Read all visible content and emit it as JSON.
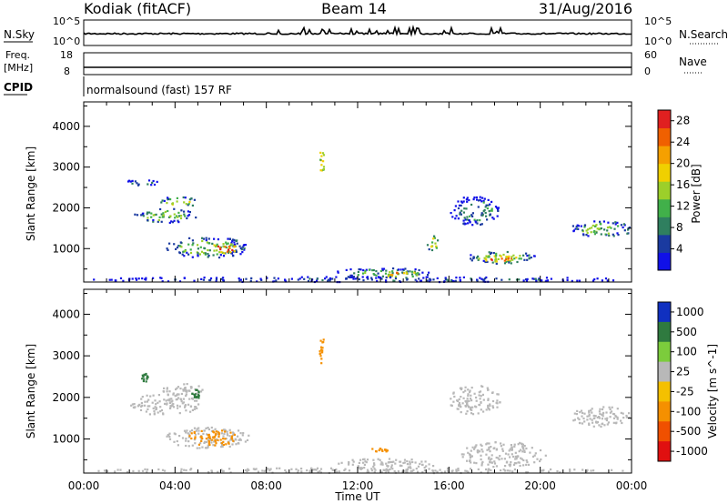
{
  "header": {
    "title": "Kodiak (fitACF)",
    "beam": "Beam 14",
    "date": "31/Aug/2016"
  },
  "top_panels": {
    "nsky_label": "N.Sky",
    "nsky_ticks": [
      "10^5",
      "10^0"
    ],
    "nsearch_label": "N.Search",
    "nsearch_ticks": [
      "10^5",
      "10^0"
    ],
    "freq_label_1": "Freq.",
    "freq_label_2": "[MHz]",
    "freq_ticks": [
      "18",
      "8"
    ],
    "nave_label": "Nave",
    "nave_ticks": [
      "60",
      "0"
    ],
    "cpid_label": "CPID",
    "cpid_text": "normalsound (fast) 157 RF"
  },
  "chart_data": [
    {
      "type": "heatmap",
      "name": "power-panel",
      "ylabel": "Slant Range [km]",
      "xlabel": "Time UT",
      "x_ticks": [
        "00:00",
        "04:00",
        "08:00",
        "12:00",
        "16:00",
        "20:00",
        "00:00"
      ],
      "x_range_hours": [
        0,
        24
      ],
      "y_ticks": [
        1000,
        2000,
        3000,
        4000
      ],
      "ylim": [
        180,
        4600
      ],
      "colorbar": {
        "label": "Power [dB]",
        "ticks": [
          "4",
          "8",
          "12",
          "16",
          "20",
          "24",
          "28"
        ],
        "range": [
          0,
          30
        ],
        "colors": [
          "#1010e8",
          "#1a3aa0",
          "#2f7f5f",
          "#41b04a",
          "#9ccf2a",
          "#f0d000",
          "#f5a000",
          "#f06000",
          "#e02020"
        ]
      },
      "patches": [
        {
          "t0": 0.4,
          "t1": 23.6,
          "r0": 200,
          "r1": 330,
          "level": 4
        },
        {
          "t0": 2.2,
          "t1": 4.9,
          "r0": 1650,
          "r1": 2000,
          "level": 12
        },
        {
          "t0": 3.3,
          "t1": 5.0,
          "r0": 2050,
          "r1": 2300,
          "level": 14
        },
        {
          "t0": 1.8,
          "t1": 3.2,
          "r0": 2550,
          "r1": 2720,
          "level": 6
        },
        {
          "t0": 3.6,
          "t1": 7.2,
          "r0": 800,
          "r1": 1300,
          "level": 12
        },
        {
          "t0": 5.5,
          "t1": 6.7,
          "r0": 900,
          "r1": 1150,
          "level": 26
        },
        {
          "t0": 11.0,
          "t1": 15.3,
          "r0": 280,
          "r1": 550,
          "level": 10
        },
        {
          "t0": 13.0,
          "t1": 14.8,
          "r0": 330,
          "r1": 460,
          "level": 22
        },
        {
          "t0": 15.0,
          "t1": 15.5,
          "r0": 950,
          "r1": 1350,
          "level": 16
        },
        {
          "t0": 16.8,
          "t1": 19.8,
          "r0": 650,
          "r1": 950,
          "level": 14
        },
        {
          "t0": 17.5,
          "t1": 19.0,
          "r0": 700,
          "r1": 850,
          "level": 24
        },
        {
          "t0": 16.0,
          "t1": 18.2,
          "r0": 1600,
          "r1": 2300,
          "level": 8
        },
        {
          "t0": 21.3,
          "t1": 24.0,
          "r0": 1300,
          "r1": 1700,
          "level": 12
        },
        {
          "t0": 10.3,
          "t1": 10.5,
          "r0": 2800,
          "r1": 3500,
          "level": 22
        }
      ]
    },
    {
      "type": "heatmap",
      "name": "velocity-panel",
      "ylabel": "Slant Range [km]",
      "xlabel": "Time UT",
      "x_ticks": [
        "00:00",
        "04:00",
        "08:00",
        "12:00",
        "16:00",
        "20:00",
        "00:00"
      ],
      "x_range_hours": [
        0,
        24
      ],
      "y_ticks": [
        1000,
        2000,
        3000,
        4000
      ],
      "ylim": [
        180,
        4600
      ],
      "colorbar": {
        "label": "Velocity [m s^-1]",
        "ticks": [
          "1000",
          "500",
          "100",
          "25",
          "-25",
          "-100",
          "-500",
          "-1000"
        ],
        "range": [
          -1000,
          1000
        ],
        "colors": [
          "#1030c0",
          "#2f7a3f",
          "#7ccc3c",
          "#b8b8b8",
          "#f4c000",
          "#f59000",
          "#f05000",
          "#e01010"
        ]
      },
      "patches": [
        {
          "t0": 0.4,
          "t1": 23.6,
          "r0": 200,
          "r1": 320,
          "level": -5
        },
        {
          "t0": 2.0,
          "t1": 5.0,
          "r0": 1600,
          "r1": 2100,
          "level": 0
        },
        {
          "t0": 3.3,
          "t1": 5.2,
          "r0": 2050,
          "r1": 2350,
          "level": 0
        },
        {
          "t0": 3.6,
          "t1": 7.2,
          "r0": 800,
          "r1": 1300,
          "level": 0
        },
        {
          "t0": 4.5,
          "t1": 6.8,
          "r0": 850,
          "r1": 1250,
          "level": -120
        },
        {
          "t0": 11.0,
          "t1": 15.3,
          "r0": 280,
          "r1": 550,
          "level": 0
        },
        {
          "t0": 12.5,
          "t1": 13.3,
          "r0": 700,
          "r1": 800,
          "level": -150
        },
        {
          "t0": 16.5,
          "t1": 20.2,
          "r0": 350,
          "r1": 950,
          "level": 0
        },
        {
          "t0": 16.0,
          "t1": 18.2,
          "r0": 1600,
          "r1": 2300,
          "level": 0
        },
        {
          "t0": 21.3,
          "t1": 24.0,
          "r0": 1300,
          "r1": 1800,
          "level": 0
        },
        {
          "t0": 4.7,
          "t1": 5.1,
          "r0": 2000,
          "r1": 2200,
          "level": 200
        },
        {
          "t0": 2.5,
          "t1": 2.8,
          "r0": 2400,
          "r1": 2600,
          "level": 200
        },
        {
          "t0": 10.3,
          "t1": 10.5,
          "r0": 2800,
          "r1": 3500,
          "level": -300
        }
      ]
    }
  ]
}
